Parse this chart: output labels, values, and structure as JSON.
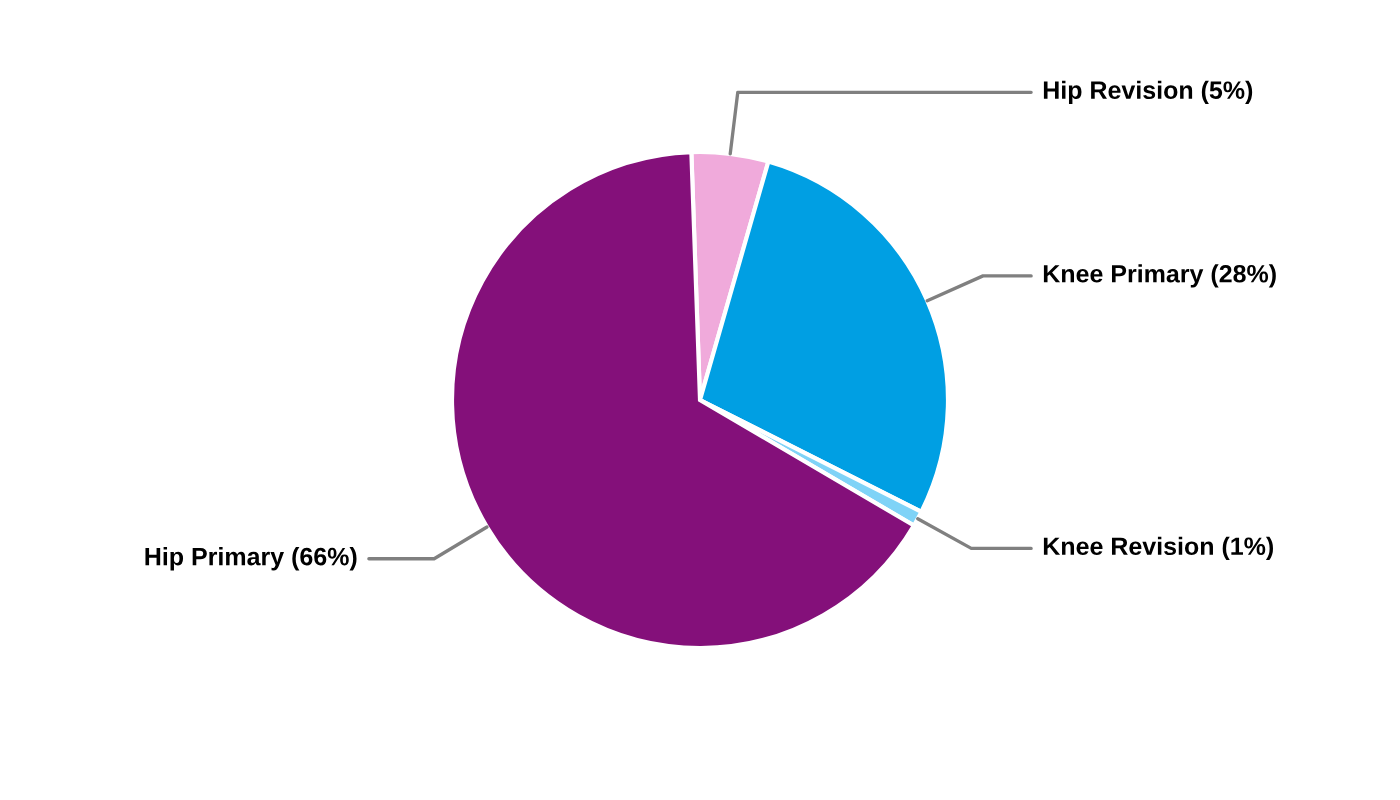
{
  "chart_data": {
    "type": "pie",
    "categories": [
      "Hip Revision (5%)",
      "Knee Primary (28%)",
      "Knee Revision (1%)",
      "Hip Primary (66%)"
    ],
    "values": [
      5,
      28,
      1,
      66
    ],
    "colors": [
      "#f0aadb",
      "#009fe3",
      "#7fd3f7",
      "#84107a"
    ],
    "legend": false
  }
}
